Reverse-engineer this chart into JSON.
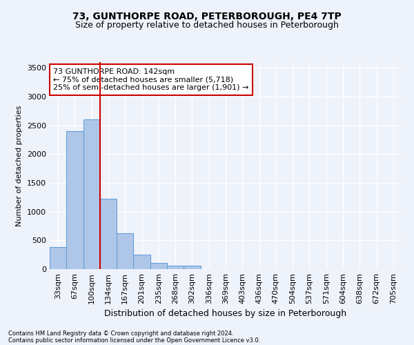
{
  "title": "73, GUNTHORPE ROAD, PETERBOROUGH, PE4 7TP",
  "subtitle": "Size of property relative to detached houses in Peterborough",
  "xlabel": "Distribution of detached houses by size in Peterborough",
  "ylabel": "Number of detached properties",
  "footnote1": "Contains HM Land Registry data © Crown copyright and database right 2024.",
  "footnote2": "Contains public sector information licensed under the Open Government Licence v3.0.",
  "categories": [
    "33sqm",
    "67sqm",
    "100sqm",
    "134sqm",
    "167sqm",
    "201sqm",
    "235sqm",
    "268sqm",
    "302sqm",
    "336sqm",
    "369sqm",
    "403sqm",
    "436sqm",
    "470sqm",
    "504sqm",
    "537sqm",
    "571sqm",
    "604sqm",
    "638sqm",
    "672sqm",
    "705sqm"
  ],
  "values": [
    380,
    2400,
    2600,
    1220,
    630,
    255,
    105,
    65,
    55,
    0,
    0,
    0,
    0,
    0,
    0,
    0,
    0,
    0,
    0,
    0,
    0
  ],
  "bar_color": "#aec6e8",
  "bar_edge_color": "#5b9bd5",
  "vline_color": "#cc0000",
  "ylim": [
    0,
    3600
  ],
  "yticks": [
    0,
    500,
    1000,
    1500,
    2000,
    2500,
    3000,
    3500
  ],
  "annotation_box_text": "73 GUNTHORPE ROAD: 142sqm\n← 75% of detached houses are smaller (5,718)\n25% of semi-detached houses are larger (1,901) →",
  "background_color": "#eef2fa",
  "grid_color": "#ffffff",
  "title_fontsize": 10,
  "subtitle_fontsize": 9,
  "ylabel_fontsize": 8,
  "xlabel_fontsize": 9,
  "tick_fontsize": 8,
  "annot_fontsize": 8,
  "footnote_fontsize": 6
}
